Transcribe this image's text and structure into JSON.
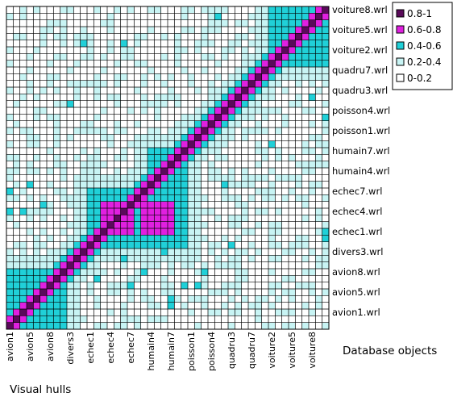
{
  "chart_data": {
    "type": "heatmap",
    "subtype": "contour",
    "xlabel": "Visual hulls",
    "ylabel": "Database objects",
    "x_tick_labels": [
      "avion1",
      "avion5",
      "avion8",
      "divers3",
      "echec1",
      "echec4",
      "echec7",
      "humain4",
      "humain7",
      "poisson1",
      "poisson4",
      "quadru3",
      "quadru7",
      "voiture2",
      "voiture5",
      "voiture8"
    ],
    "y_tick_labels": [
      "voiture8.wrl",
      "voiture5.wrl",
      "voiture2.wrl",
      "quadru7.wrl",
      "quadru3.wrl",
      "poisson4.wrl",
      "poisson1.wrl",
      "humain7.wrl",
      "humain4.wrl",
      "echec7.wrl",
      "echec4.wrl",
      "echec1.wrl",
      "divers3.wrl",
      "avion8.wrl",
      "avion5.wrl",
      "avion1.wrl"
    ],
    "grid_cells": 48,
    "grid": true,
    "legend_position": "top-right",
    "levels": [
      {
        "label": "0.8-1",
        "min": 0.8,
        "max": 1.0,
        "color": "#5a0a5a"
      },
      {
        "label": "0.6-0.8",
        "min": 0.6,
        "max": 0.8,
        "color": "#e020e0"
      },
      {
        "label": "0.4-0.6",
        "min": 0.4,
        "max": 0.6,
        "color": "#20d0d8"
      },
      {
        "label": "0.2-0.4",
        "min": 0.2,
        "max": 0.4,
        "color": "#c8f4f4"
      },
      {
        "label": "0-0.2",
        "min": 0.0,
        "max": 0.2,
        "color": "#ffffff"
      }
    ],
    "diagonal_value": 0.95,
    "high_similarity_regions": [
      {
        "x_from": "echec1",
        "x_to": "echec7",
        "y_from": "echec1.wrl",
        "y_to": "echec7.wrl",
        "value": 0.7
      },
      {
        "x_from": "humain4",
        "x_to": "humain7",
        "y_from": "humain4.wrl",
        "y_to": "humain7.wrl",
        "value": 0.45
      },
      {
        "x_from": "voiture2",
        "x_to": "voiture8",
        "y_from": "voiture2.wrl",
        "y_to": "voiture8.wrl",
        "value": 0.5
      },
      {
        "x_from": "echec7",
        "x_to": "humain7",
        "y_from": "echec1.wrl",
        "y_to": "echec7.wrl",
        "value": 0.75
      },
      {
        "x_from": "avion1",
        "x_to": "avion8",
        "y_from": "avion1.wrl",
        "y_to": "avion8.wrl",
        "value": 0.45
      }
    ]
  }
}
